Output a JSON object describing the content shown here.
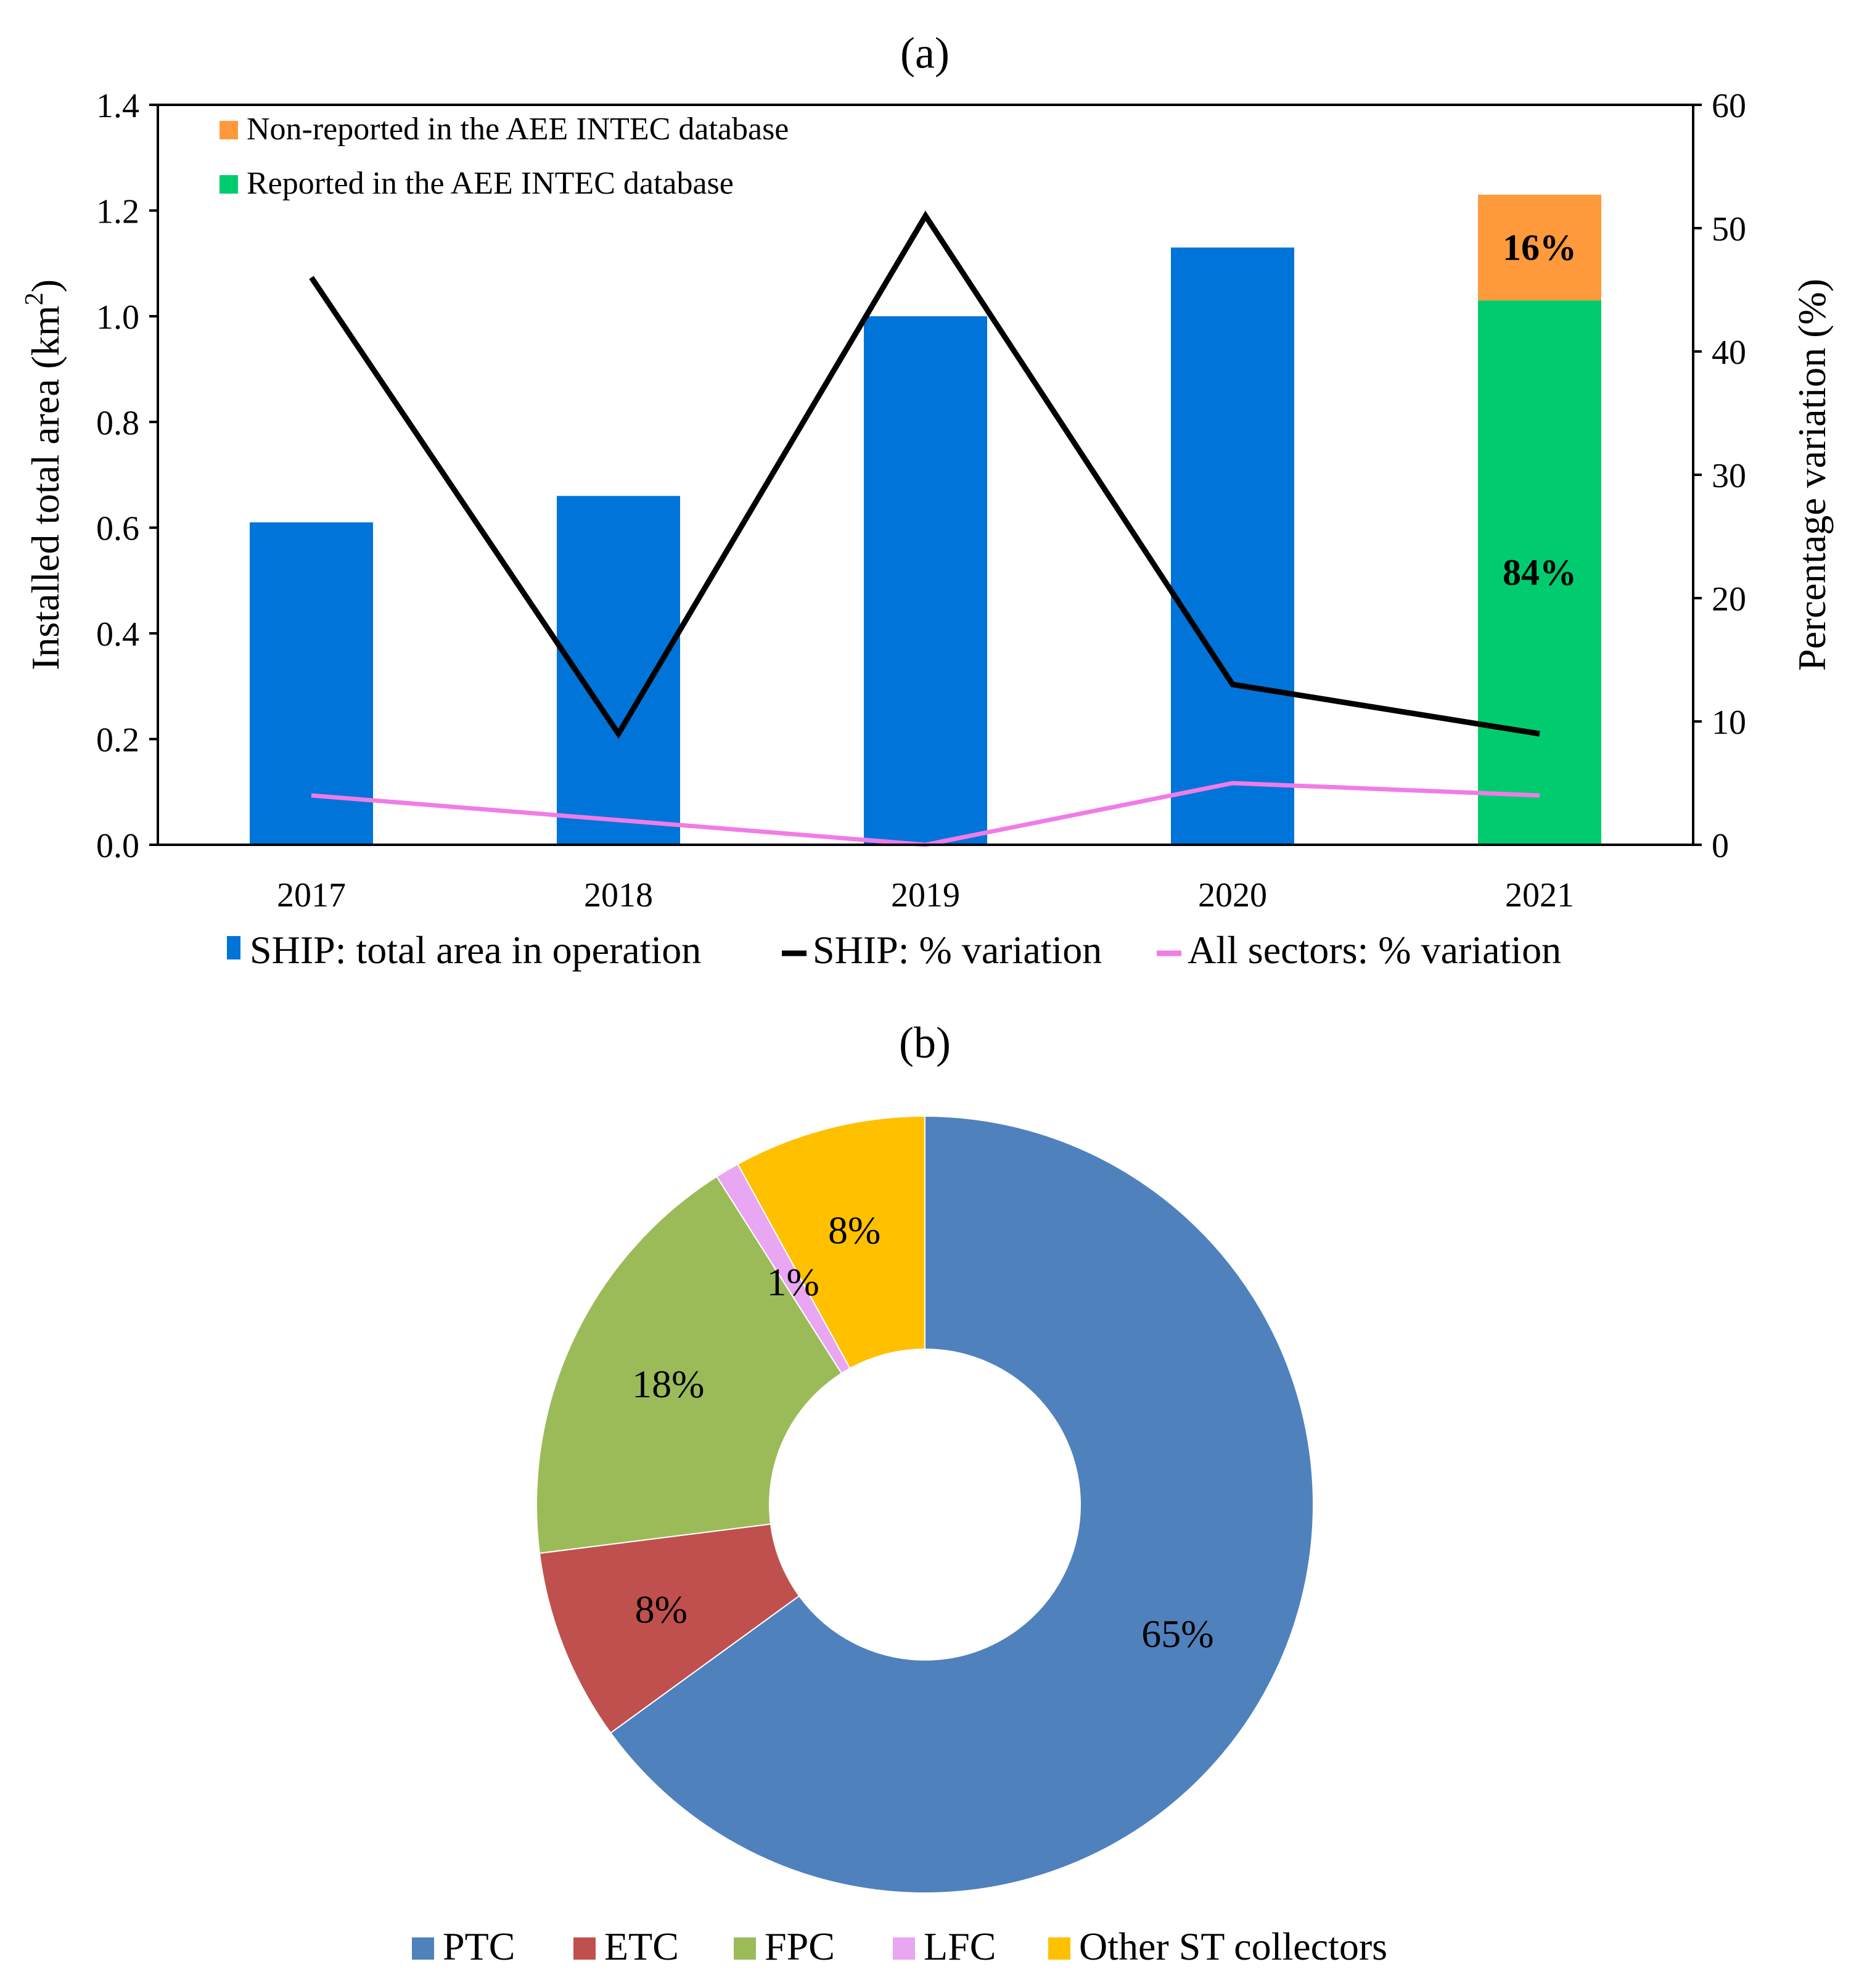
{
  "chart_data": [
    {
      "panel_label": "(a)",
      "type": "bar",
      "categories": [
        "2017",
        "2018",
        "2019",
        "2020",
        "2021"
      ],
      "series": [
        {
          "name": "SHIP: total area in operation",
          "kind": "bar",
          "axis": "left",
          "values": [
            0.61,
            0.66,
            1.0,
            1.13,
            null
          ],
          "color": "#0074D9"
        },
        {
          "name": "Reported in the AEE INTEC database",
          "kind": "stacked-bar",
          "axis": "left",
          "values": [
            null,
            null,
            null,
            null,
            1.03
          ],
          "color": "#00CC6F",
          "label": "84%"
        },
        {
          "name": "Non-reported in the AEE INTEC database",
          "kind": "stacked-bar",
          "axis": "left",
          "values": [
            null,
            null,
            null,
            null,
            0.2
          ],
          "color": "#FF9A3C",
          "label": "16%"
        },
        {
          "name": "SHIP: % variation",
          "kind": "line",
          "axis": "right",
          "values": [
            46,
            9,
            51,
            13,
            9
          ],
          "color": "#000000"
        },
        {
          "name": "All sectors: % variation",
          "kind": "line",
          "axis": "right",
          "values": [
            4,
            2,
            0,
            5,
            4
          ],
          "color": "#F07CE6"
        }
      ],
      "ylabel": "Installed total area (km",
      "ylabel_sup": "2",
      "ylabel_end": ")",
      "ylim": [
        0,
        1.4
      ],
      "yticks": [
        "0.0",
        "0.2",
        "0.4",
        "0.6",
        "0.8",
        "1.0",
        "1.2",
        "1.4"
      ],
      "y2label": "Percentage variation (%)",
      "y2lim": [
        0,
        60
      ],
      "y2ticks": [
        "0",
        "10",
        "20",
        "30",
        "40",
        "50",
        "60"
      ],
      "inner_legend": [
        "Non-reported in the AEE INTEC database",
        "Reported in the AEE INTEC database"
      ],
      "bottom_legend": [
        "SHIP: total area in operation",
        "SHIP: % variation",
        "All sectors: % variation"
      ]
    },
    {
      "panel_label": "(b)",
      "type": "pie",
      "subtype": "donut",
      "slices": [
        {
          "name": "PTC",
          "value": 65,
          "label": "65%",
          "color": "#4F81BD"
        },
        {
          "name": "ETC",
          "value": 8,
          "label": "8%",
          "color": "#C0504D"
        },
        {
          "name": "FPC",
          "value": 18,
          "label": "18%",
          "color": "#9BBB59"
        },
        {
          "name": "LFC",
          "value": 1,
          "label": "1%",
          "color": "#E9A6F2"
        },
        {
          "name": "Other ST collectors",
          "value": 8,
          "label": "8%",
          "color": "#FFC000"
        }
      ],
      "legend": [
        "PTC",
        "ETC",
        "FPC",
        "LFC",
        "Other ST collectors"
      ]
    }
  ]
}
